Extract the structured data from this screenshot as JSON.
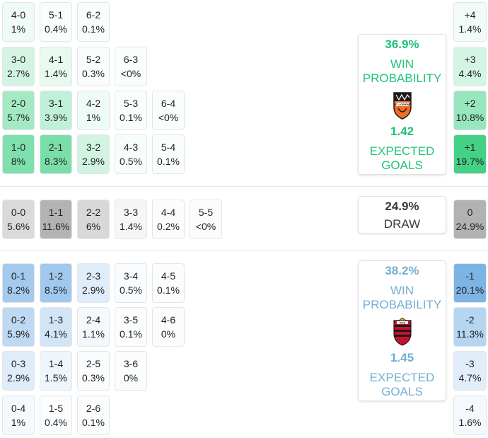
{
  "colors": {
    "home_accent": "#20c374",
    "away_accent": "#74aed3",
    "draw_text": "#3a3a3a"
  },
  "home_grid": [
    [
      {
        "score": "4-0",
        "prob": "1%"
      },
      {
        "score": "5-1",
        "prob": "0.4%"
      },
      {
        "score": "6-2",
        "prob": "0.1%"
      }
    ],
    [
      {
        "score": "3-0",
        "prob": "2.7%"
      },
      {
        "score": "4-1",
        "prob": "1.4%"
      },
      {
        "score": "5-2",
        "prob": "0.3%"
      },
      {
        "score": "6-3",
        "prob": "<0%"
      }
    ],
    [
      {
        "score": "2-0",
        "prob": "5.7%"
      },
      {
        "score": "3-1",
        "prob": "3.9%"
      },
      {
        "score": "4-2",
        "prob": "1%"
      },
      {
        "score": "5-3",
        "prob": "0.1%"
      },
      {
        "score": "6-4",
        "prob": "<0%"
      }
    ],
    [
      {
        "score": "1-0",
        "prob": "8%"
      },
      {
        "score": "2-1",
        "prob": "8.3%"
      },
      {
        "score": "3-2",
        "prob": "2.9%"
      },
      {
        "score": "4-3",
        "prob": "0.5%"
      },
      {
        "score": "5-4",
        "prob": "0.1%"
      }
    ]
  ],
  "draw_row": [
    {
      "score": "0-0",
      "prob": "5.6%"
    },
    {
      "score": "1-1",
      "prob": "11.6%"
    },
    {
      "score": "2-2",
      "prob": "6%"
    },
    {
      "score": "3-3",
      "prob": "1.4%"
    },
    {
      "score": "4-4",
      "prob": "0.2%"
    },
    {
      "score": "5-5",
      "prob": "<0%"
    }
  ],
  "away_grid": [
    [
      {
        "score": "0-1",
        "prob": "8.2%"
      },
      {
        "score": "1-2",
        "prob": "8.5%"
      },
      {
        "score": "2-3",
        "prob": "2.9%"
      },
      {
        "score": "3-4",
        "prob": "0.5%"
      },
      {
        "score": "4-5",
        "prob": "0.1%"
      }
    ],
    [
      {
        "score": "0-2",
        "prob": "5.9%"
      },
      {
        "score": "1-3",
        "prob": "4.1%"
      },
      {
        "score": "2-4",
        "prob": "1.1%"
      },
      {
        "score": "3-5",
        "prob": "0.1%"
      },
      {
        "score": "4-6",
        "prob": "0%"
      }
    ],
    [
      {
        "score": "0-3",
        "prob": "2.9%"
      },
      {
        "score": "1-4",
        "prob": "1.5%"
      },
      {
        "score": "2-5",
        "prob": "0.3%"
      },
      {
        "score": "3-6",
        "prob": "0%"
      }
    ],
    [
      {
        "score": "0-4",
        "prob": "1%"
      },
      {
        "score": "1-5",
        "prob": "0.4%"
      },
      {
        "score": "2-6",
        "prob": "0.1%"
      }
    ]
  ],
  "home_margins": [
    {
      "label": "+4",
      "prob": "1.4%"
    },
    {
      "label": "+3",
      "prob": "4.4%"
    },
    {
      "label": "+2",
      "prob": "10.8%"
    },
    {
      "label": "+1",
      "prob": "19.7%"
    }
  ],
  "draw_margin": {
    "label": "0",
    "prob": "24.9%"
  },
  "away_margins": [
    {
      "label": "-1",
      "prob": "20.1%"
    },
    {
      "label": "-2",
      "prob": "11.3%"
    },
    {
      "label": "-3",
      "prob": "4.7%"
    },
    {
      "label": "-4",
      "prob": "1.6%"
    }
  ],
  "home_card": {
    "win_pct": "36.9%",
    "win_label_1": "WIN",
    "win_label_2": "PROBABILITY",
    "logo_icon": "fc-lorient-crest-icon",
    "logo_text": "FC LORIENT",
    "xg": "1.42",
    "xg_label_1": "EXPECTED",
    "xg_label_2": "GOALS"
  },
  "draw_card": {
    "pct": "24.9%",
    "label": "DRAW"
  },
  "away_card": {
    "win_pct": "38.2%",
    "win_label_1": "WIN",
    "win_label_2": "PROBABILITY",
    "logo_icon": "ogc-nice-crest-icon",
    "logo_text": "NICE",
    "xg": "1.45",
    "xg_label_1": "EXPECTED",
    "xg_label_2": "GOALS"
  }
}
